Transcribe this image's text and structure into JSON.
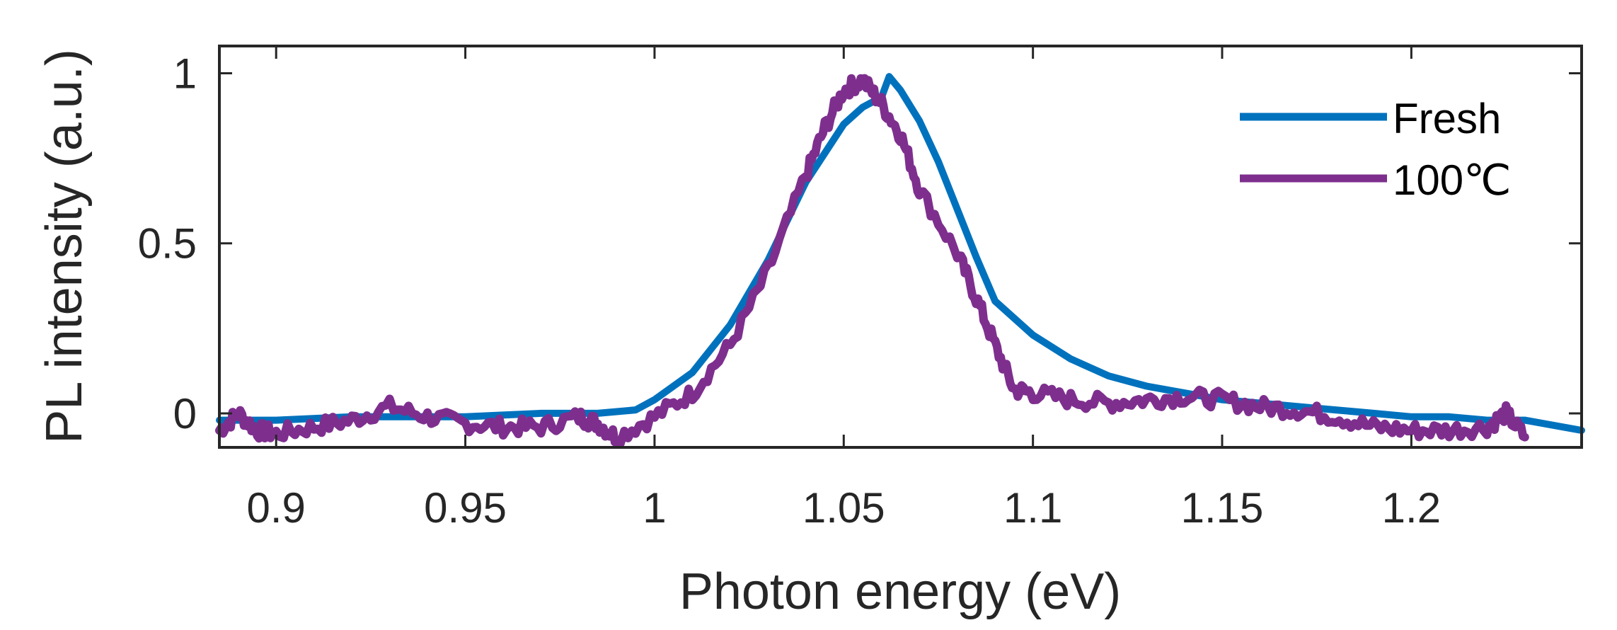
{
  "chart_data": {
    "type": "line",
    "title": "",
    "xlabel": "Photon energy (eV)",
    "ylabel": "PL intensity (a.u.)",
    "xlim": [
      0.885,
      1.245
    ],
    "ylim": [
      -0.1,
      1.08
    ],
    "x_ticks": [
      0.9,
      0.95,
      1.0,
      1.05,
      1.1,
      1.15,
      1.2
    ],
    "x_tick_labels": [
      "0.9",
      "0.95",
      "1",
      "1.05",
      "1.1",
      "1.15",
      "1.2"
    ],
    "y_ticks": [
      0,
      0.5,
      1
    ],
    "y_tick_labels": [
      "0",
      "0.5",
      "1"
    ],
    "grid": false,
    "legend_position": "top-right",
    "series": [
      {
        "name": "Fresh",
        "color": "#0072BD",
        "x": [
          0.885,
          0.9,
          0.92,
          0.95,
          0.97,
          0.985,
          0.995,
          1.0,
          1.01,
          1.02,
          1.03,
          1.04,
          1.05,
          1.055,
          1.06,
          1.062,
          1.065,
          1.07,
          1.075,
          1.08,
          1.085,
          1.09,
          1.1,
          1.11,
          1.12,
          1.13,
          1.14,
          1.15,
          1.16,
          1.17,
          1.18,
          1.19,
          1.2,
          1.21,
          1.22,
          1.23,
          1.245
        ],
        "y": [
          -0.02,
          -0.02,
          -0.01,
          -0.01,
          0.0,
          0.0,
          0.01,
          0.04,
          0.12,
          0.26,
          0.45,
          0.68,
          0.85,
          0.9,
          0.93,
          0.99,
          0.95,
          0.86,
          0.74,
          0.6,
          0.46,
          0.33,
          0.23,
          0.16,
          0.11,
          0.08,
          0.06,
          0.04,
          0.03,
          0.02,
          0.01,
          0.0,
          -0.01,
          -0.01,
          -0.02,
          -0.02,
          -0.05
        ]
      },
      {
        "name": "100℃",
        "color": "#7E2F8E",
        "x": [
          0.885,
          0.89,
          0.895,
          0.9,
          0.91,
          0.92,
          0.93,
          0.94,
          0.95,
          0.96,
          0.97,
          0.98,
          0.985,
          0.99,
          1.0,
          1.01,
          1.02,
          1.03,
          1.04,
          1.045,
          1.05,
          1.055,
          1.06,
          1.065,
          1.07,
          1.08,
          1.085,
          1.09,
          1.095,
          1.1,
          1.11,
          1.12,
          1.13,
          1.14,
          1.15,
          1.16,
          1.17,
          1.18,
          1.19,
          1.2,
          1.21,
          1.22,
          1.225,
          1.23
        ],
        "y": [
          -0.05,
          0.0,
          -0.05,
          -0.06,
          -0.04,
          -0.02,
          0.02,
          -0.01,
          -0.03,
          -0.04,
          -0.04,
          -0.01,
          -0.03,
          -0.07,
          -0.01,
          0.06,
          0.2,
          0.42,
          0.7,
          0.84,
          0.95,
          0.98,
          0.91,
          0.82,
          0.66,
          0.47,
          0.34,
          0.2,
          0.07,
          0.06,
          0.04,
          0.03,
          0.04,
          0.05,
          0.04,
          0.02,
          0.01,
          -0.01,
          -0.04,
          -0.05,
          -0.05,
          -0.04,
          0.0,
          -0.07
        ]
      }
    ]
  }
}
